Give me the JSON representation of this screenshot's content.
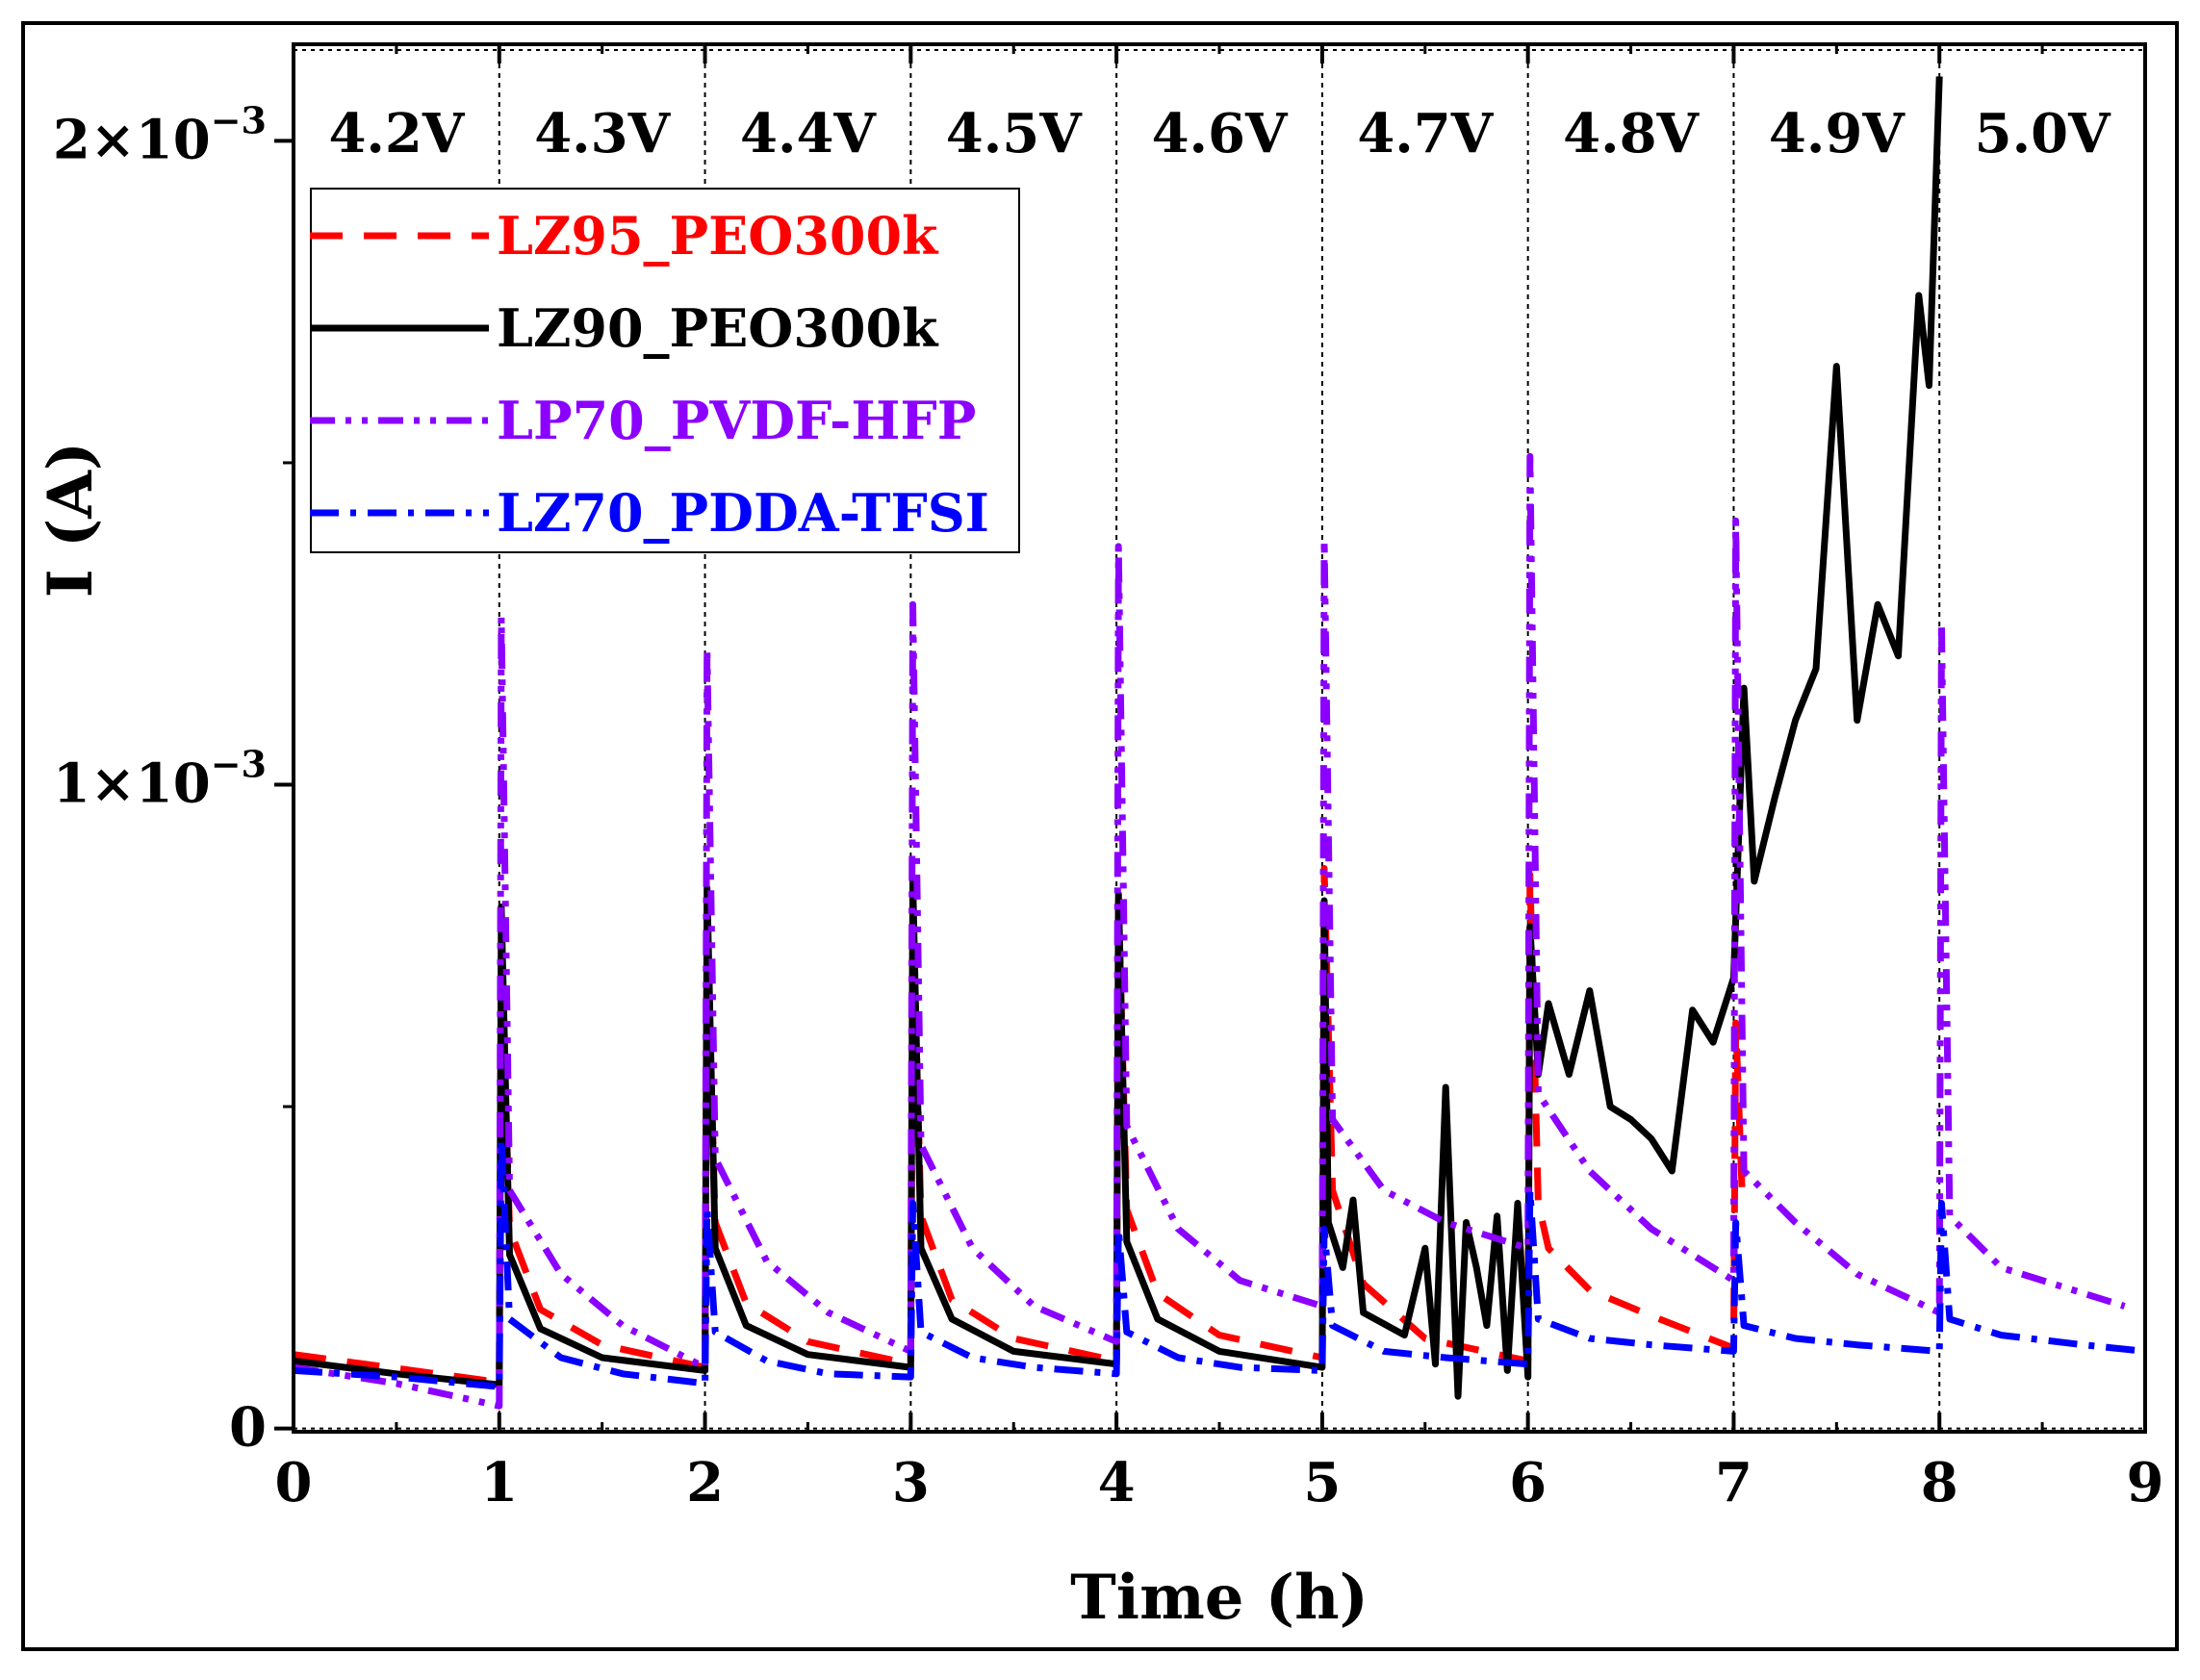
{
  "chart_data": {
    "type": "line",
    "xlabel": "Time (h)",
    "ylabel": "I (A)",
    "xlim": [
      0,
      9
    ],
    "ylim": [
      -5e-06,
      0.00215
    ],
    "grid": false,
    "legend_position": "top-left",
    "x_ticks": [
      {
        "value": 0,
        "label": "0"
      },
      {
        "value": 1,
        "label": "1"
      },
      {
        "value": 2,
        "label": "2"
      },
      {
        "value": 3,
        "label": "3"
      },
      {
        "value": 4,
        "label": "4"
      },
      {
        "value": 5,
        "label": "5"
      },
      {
        "value": 6,
        "label": "6"
      },
      {
        "value": 7,
        "label": "7"
      },
      {
        "value": 8,
        "label": "8"
      },
      {
        "value": 9,
        "label": "9"
      }
    ],
    "y_ticks": [
      {
        "value": 0,
        "base": "0",
        "exp": ""
      },
      {
        "value": 0.001,
        "base": "1×10",
        "exp": "−3"
      },
      {
        "value": 0.002,
        "base": "2×10",
        "exp": "−3"
      }
    ],
    "step_boundaries": [
      1,
      2,
      3,
      4,
      5,
      6,
      7,
      8
    ],
    "voltage_steps": [
      {
        "label": "4.2V",
        "x_center": 0.5
      },
      {
        "label": "4.3V",
        "x_center": 1.5
      },
      {
        "label": "4.4V",
        "x_center": 2.5
      },
      {
        "label": "4.5V",
        "x_center": 3.5
      },
      {
        "label": "4.6V",
        "x_center": 4.5
      },
      {
        "label": "4.7V",
        "x_center": 5.5
      },
      {
        "label": "4.8V",
        "x_center": 6.5
      },
      {
        "label": "4.9V",
        "x_center": 7.5
      },
      {
        "label": "5.0V",
        "x_center": 8.5
      }
    ],
    "series": [
      {
        "name": "LZ95_PEO300k",
        "color": "#ff0000",
        "dash": "dashed",
        "points": [
          [
            0,
            0.000115
          ],
          [
            0.5,
            9.35e-05
          ],
          [
            1.0,
            7.2e-05
          ],
          [
            1.0,
            9.5e-05
          ],
          [
            1.01,
            0.00073
          ],
          [
            1.05,
            0.00031
          ],
          [
            1.2,
            0.000185
          ],
          [
            1.5,
            0.00013
          ],
          [
            2.0,
            9.5e-05
          ],
          [
            2.0,
            9.5e-05
          ],
          [
            2.01,
            0.00077
          ],
          [
            2.05,
            0.00032
          ],
          [
            2.2,
            0.000195
          ],
          [
            2.5,
            0.000135
          ],
          [
            3.0,
            0.0001
          ],
          [
            3.0,
            0.0001
          ],
          [
            3.01,
            0.0008
          ],
          [
            3.05,
            0.00033
          ],
          [
            3.2,
            0.0002
          ],
          [
            3.5,
            0.00014
          ],
          [
            4.0,
            0.000105
          ],
          [
            4.0,
            0.000105
          ],
          [
            4.01,
            0.00082
          ],
          [
            4.05,
            0.00034
          ],
          [
            4.2,
            0.00021
          ],
          [
            4.5,
            0.000145
          ],
          [
            5.0,
            0.00011
          ],
          [
            5.0,
            0.00011
          ],
          [
            5.01,
            0.00087
          ],
          [
            5.05,
            0.00037
          ],
          [
            5.2,
            0.000225
          ],
          [
            5.5,
            0.00014
          ],
          [
            6.0,
            0.000105
          ],
          [
            6.0,
            0.000105
          ],
          [
            6.01,
            0.00086
          ],
          [
            6.05,
            0.00035
          ],
          [
            6.1,
            0.00028
          ],
          [
            6.3,
            0.000215
          ],
          [
            6.6,
            0.000175
          ],
          [
            7.0,
            0.000125
          ],
          [
            7.0,
            0.000125
          ],
          [
            7.01,
            0.00063
          ],
          [
            7.04,
            0.000375
          ]
        ]
      },
      {
        "name": "LZ90_PEO300k",
        "color": "#000000",
        "dash": "solid",
        "points": [
          [
            0,
            0.000105
          ],
          [
            0.5,
            8.5e-05
          ],
          [
            1.0,
            6.8e-05
          ],
          [
            1.0,
            7e-05
          ],
          [
            1.01,
            0.00081
          ],
          [
            1.05,
            0.00027
          ],
          [
            1.2,
            0.000155
          ],
          [
            1.5,
            0.00011
          ],
          [
            2.0,
            9e-05
          ],
          [
            2.0,
            9e-05
          ],
          [
            2.01,
            0.00084
          ],
          [
            2.05,
            0.00028
          ],
          [
            2.2,
            0.00016
          ],
          [
            2.5,
            0.000115
          ],
          [
            3.0,
            9.5e-05
          ],
          [
            3.0,
            9.5e-05
          ],
          [
            3.01,
            0.00085
          ],
          [
            3.05,
            0.00028
          ],
          [
            3.2,
            0.00017
          ],
          [
            3.5,
            0.00012
          ],
          [
            4.0,
            0.0001
          ],
          [
            4.0,
            0.0001
          ],
          [
            4.01,
            0.00083
          ],
          [
            4.05,
            0.00029
          ],
          [
            4.2,
            0.00017
          ],
          [
            4.5,
            0.00012
          ],
          [
            5.0,
            9.5e-05
          ],
          [
            5.0,
            9.5e-05
          ],
          [
            5.01,
            0.00082
          ],
          [
            5.03,
            0.00032
          ],
          [
            5.1,
            0.00025
          ],
          [
            5.15,
            0.000355
          ],
          [
            5.2,
            0.00018
          ],
          [
            5.4,
            0.000145
          ],
          [
            5.5,
            0.00028
          ],
          [
            5.55,
            0.0001
          ],
          [
            5.6,
            0.00053
          ],
          [
            5.66,
            5e-05
          ],
          [
            5.7,
            0.00032
          ],
          [
            5.75,
            0.00025
          ],
          [
            5.8,
            0.00016
          ],
          [
            5.85,
            0.00033
          ],
          [
            5.9,
            9e-05
          ],
          [
            5.95,
            0.00035
          ],
          [
            6.0,
            8e-05
          ],
          [
            6.0,
            8e-05
          ],
          [
            6.01,
            0.00078
          ],
          [
            6.05,
            0.00055
          ],
          [
            6.1,
            0.00066
          ],
          [
            6.2,
            0.00055
          ],
          [
            6.3,
            0.00068
          ],
          [
            6.4,
            0.0005
          ],
          [
            6.5,
            0.00048
          ],
          [
            6.6,
            0.00045
          ],
          [
            6.7,
            0.0004
          ],
          [
            6.8,
            0.00065
          ],
          [
            6.9,
            0.0006
          ],
          [
            7.0,
            0.0007
          ],
          [
            7.05,
            0.00115
          ],
          [
            7.1,
            0.00085
          ],
          [
            7.2,
            0.00098
          ],
          [
            7.3,
            0.0011
          ],
          [
            7.4,
            0.00118
          ],
          [
            7.5,
            0.00165
          ],
          [
            7.6,
            0.0011
          ],
          [
            7.7,
            0.00128
          ],
          [
            7.8,
            0.0012
          ],
          [
            7.9,
            0.00176
          ],
          [
            7.95,
            0.00162
          ],
          [
            8.0,
            0.0021
          ]
        ]
      },
      {
        "name": "LP70_PVDF-HFP",
        "color": "#8b00ff",
        "dash": "dash-dot-dot",
        "points": [
          [
            0,
            9.5e-05
          ],
          [
            0.5,
            7e-05
          ],
          [
            1.0,
            3.5e-05
          ],
          [
            1.0,
            3.5e-05
          ],
          [
            1.01,
            0.00126
          ],
          [
            1.05,
            0.00037
          ],
          [
            1.3,
            0.00024
          ],
          [
            1.6,
            0.00016
          ],
          [
            2.0,
            9.5e-05
          ],
          [
            2.0,
            9.5e-05
          ],
          [
            2.01,
            0.00121
          ],
          [
            2.05,
            0.00042
          ],
          [
            2.3,
            0.00026
          ],
          [
            2.6,
            0.00018
          ],
          [
            3.0,
            0.00012
          ],
          [
            3.0,
            0.00012
          ],
          [
            3.01,
            0.00128
          ],
          [
            3.05,
            0.00044
          ],
          [
            3.3,
            0.00028
          ],
          [
            3.6,
            0.00019
          ],
          [
            4.0,
            0.000135
          ],
          [
            4.0,
            0.000135
          ],
          [
            4.01,
            0.00137
          ],
          [
            4.05,
            0.00047
          ],
          [
            4.3,
            0.00031
          ],
          [
            4.6,
            0.00023
          ],
          [
            5.0,
            0.00019
          ],
          [
            5.0,
            0.00019
          ],
          [
            5.01,
            0.00138
          ],
          [
            5.05,
            0.00048
          ],
          [
            5.3,
            0.00037
          ],
          [
            5.6,
            0.00032
          ],
          [
            6.0,
            0.00028
          ],
          [
            6.0,
            0.00028
          ],
          [
            6.01,
            0.00151
          ],
          [
            6.05,
            0.00052
          ],
          [
            6.3,
            0.0004
          ],
          [
            6.6,
            0.00031
          ],
          [
            7.0,
            0.00023
          ],
          [
            7.0,
            0.00023
          ],
          [
            7.01,
            0.00141
          ],
          [
            7.05,
            0.0004
          ],
          [
            7.3,
            0.00032
          ],
          [
            7.6,
            0.00024
          ],
          [
            8.0,
            0.00018
          ],
          [
            8.0,
            0.00018
          ],
          [
            8.01,
            0.00125
          ],
          [
            8.05,
            0.00033
          ],
          [
            8.3,
            0.00025
          ],
          [
            8.7,
            0.00021
          ],
          [
            8.9,
            0.00019
          ]
        ]
      },
      {
        "name": "LZ70_PDDA-TFSI",
        "color": "#0000ff",
        "dash": "dash-dot",
        "points": [
          [
            0,
            9e-05
          ],
          [
            0.5,
            8e-05
          ],
          [
            1.0,
            6.5e-05
          ],
          [
            1.0,
            6.5e-05
          ],
          [
            1.01,
            0.00045
          ],
          [
            1.05,
            0.00017
          ],
          [
            1.3,
            0.00011
          ],
          [
            1.6,
            8.5e-05
          ],
          [
            2.0,
            7e-05
          ],
          [
            2.0,
            7e-05
          ],
          [
            2.01,
            0.00034
          ],
          [
            2.05,
            0.00015
          ],
          [
            2.3,
            0.000105
          ],
          [
            2.6,
            8.5e-05
          ],
          [
            3.0,
            8e-05
          ],
          [
            3.0,
            8e-05
          ],
          [
            3.01,
            0.00035
          ],
          [
            3.05,
            0.00015
          ],
          [
            3.3,
            0.00011
          ],
          [
            3.6,
            9.5e-05
          ],
          [
            4.0,
            8.5e-05
          ],
          [
            4.0,
            8.5e-05
          ],
          [
            4.01,
            0.00031
          ],
          [
            4.05,
            0.00015
          ],
          [
            4.3,
            0.00011
          ],
          [
            4.6,
            9.5e-05
          ],
          [
            5.0,
            9e-05
          ],
          [
            5.0,
            9e-05
          ],
          [
            5.01,
            0.00031
          ],
          [
            5.05,
            0.00016
          ],
          [
            5.3,
            0.00012
          ],
          [
            5.6,
            0.00011
          ],
          [
            6.0,
            0.0001
          ],
          [
            6.0,
            0.0001
          ],
          [
            6.01,
            0.00037
          ],
          [
            6.05,
            0.00017
          ],
          [
            6.3,
            0.00014
          ],
          [
            6.6,
            0.00013
          ],
          [
            7.0,
            0.00012
          ],
          [
            7.0,
            0.00012
          ],
          [
            7.01,
            0.00032
          ],
          [
            7.05,
            0.00016
          ],
          [
            7.3,
            0.00014
          ],
          [
            7.6,
            0.00013
          ],
          [
            8.0,
            0.00012
          ],
          [
            8.0,
            0.00012
          ],
          [
            8.01,
            0.00035
          ],
          [
            8.05,
            0.00017
          ],
          [
            8.3,
            0.000145
          ],
          [
            8.7,
            0.00013
          ],
          [
            9.0,
            0.00012
          ]
        ]
      }
    ]
  }
}
